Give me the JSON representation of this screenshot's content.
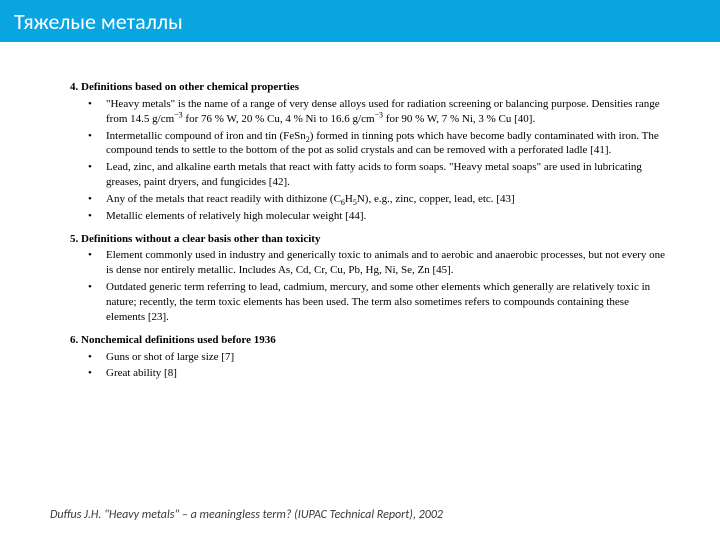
{
  "header": {
    "title": "Тяжелые металлы",
    "bg_color": "#08a5e1",
    "text_color": "#ffffff"
  },
  "sections": [
    {
      "heading": "4. Definitions based on other chemical properties",
      "items": [
        "\"Heavy metals\" is the name of a range of very dense alloys used for radiation screening or balancing purpose. Densities range from 14.5 g/cm<span class=\"sup\">−3</span> for 76 % W, 20 % Cu, 4 % Ni to 16.6 g/cm<span class=\"sup\">−3</span> for 90 % W, 7 % Ni, 3 % Cu [40].",
        "Intermetallic compound of iron and tin (FeSn<span class=\"subs\">2</span>) formed in tinning pots which have become badly contaminated with iron. The compound tends to settle to the bottom of the pot as solid crystals and can be removed with a perforated ladle [41].",
        "Lead, zinc, and alkaline earth metals that react with fatty acids to form soaps. \"Heavy metal soaps\" are used in lubricating greases, paint dryers, and fungicides [42].",
        "Any of the metals that react readily with dithizone (C<span class=\"subs\">6</span>H<span class=\"subs\">5</span>N), e.g., zinc, copper, lead, etc. [43]",
        "Metallic elements of relatively high molecular weight [44]."
      ]
    },
    {
      "heading": "5. Definitions without a clear basis other than toxicity",
      "items": [
        "Element commonly used in industry and generically toxic to animals and to aerobic and anaerobic processes, but not every one is dense nor entirely metallic. Includes As, Cd, Cr, Cu, Pb, Hg, Ni, Se, Zn [45].",
        "Outdated generic term referring to lead, cadmium, mercury, and some other elements which generally are relatively toxic in nature; recently, the term toxic elements has been used. The term also sometimes refers to compounds containing these elements [23]."
      ]
    },
    {
      "heading": "6. Nonchemical definitions used before 1936",
      "items": [
        "Guns or shot of large size [7]",
        "Great ability [8]"
      ]
    }
  ],
  "citation": "Duffus J.H. \"Heavy metals\" – a meaningless term? (IUPAC Technical Report), 2002"
}
